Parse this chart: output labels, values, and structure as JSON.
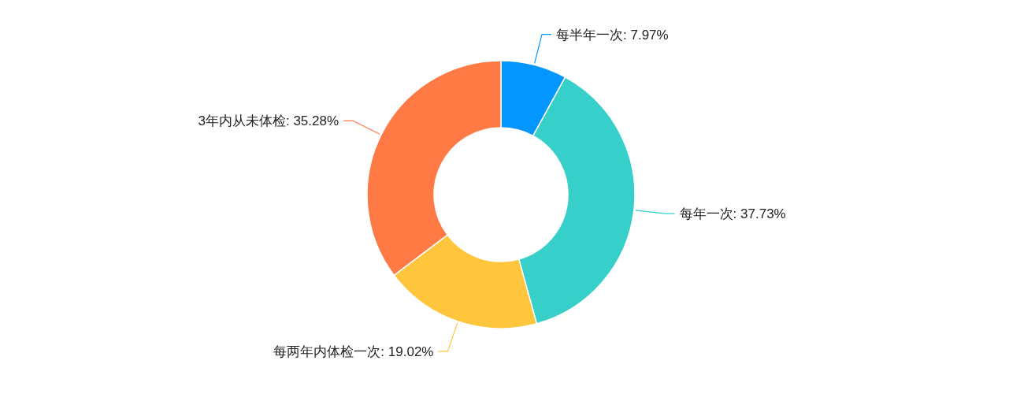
{
  "chart_data": {
    "type": "donut",
    "categories": [
      "每半年一次",
      "每年一次",
      "每两年内体检一次",
      "3年内从未体检"
    ],
    "values": [
      7.97,
      37.73,
      19.02,
      35.28
    ],
    "value_labels": [
      ": 7.97%",
      ": 37.73%",
      ": 19.02%",
      ": 35.28%"
    ],
    "colors": [
      "#0496ff",
      "#36cfc9",
      "#ffc53d",
      "#ff7a45"
    ]
  }
}
